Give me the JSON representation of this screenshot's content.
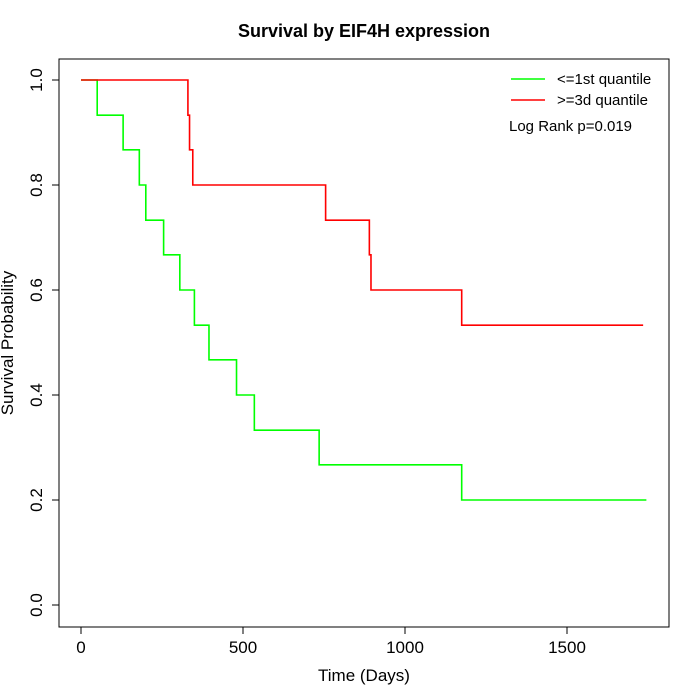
{
  "chart_data": {
    "type": "line",
    "title": "Survival by EIF4H expression",
    "xlabel": "Time (Days)",
    "ylabel": "Survival Probability",
    "xlim": [
      0,
      1750
    ],
    "ylim": [
      0,
      1.0
    ],
    "x_ticks": [
      0,
      500,
      1000,
      1500
    ],
    "x_tick_labels": [
      "0",
      "500",
      "1000",
      "1500"
    ],
    "y_ticks": [
      0,
      0.2,
      0.4,
      0.6,
      0.8,
      1.0
    ],
    "y_tick_labels": [
      "0.0",
      "0.2",
      "0.4",
      "0.6",
      "0.8",
      "1.0"
    ],
    "grid": false,
    "legend_position": "top-right",
    "annotation": "Log Rank p=0.019",
    "series": [
      {
        "name": "<=1st quantile",
        "color": "#00ff00",
        "step": true,
        "x": [
          0,
          50,
          130,
          180,
          200,
          255,
          305,
          350,
          395,
          480,
          535,
          735,
          1175,
          1745
        ],
        "y": [
          1.0,
          0.933,
          0.867,
          0.8,
          0.733,
          0.667,
          0.6,
          0.533,
          0.467,
          0.4,
          0.333,
          0.267,
          0.2,
          0.2
        ]
      },
      {
        "name": ">=3d quantile",
        "color": "#ff0000",
        "step": true,
        "x": [
          0,
          330,
          335,
          345,
          755,
          890,
          895,
          1175,
          1735
        ],
        "y": [
          1.0,
          0.933,
          0.867,
          0.8,
          0.733,
          0.667,
          0.6,
          0.533,
          0.533
        ]
      }
    ]
  }
}
